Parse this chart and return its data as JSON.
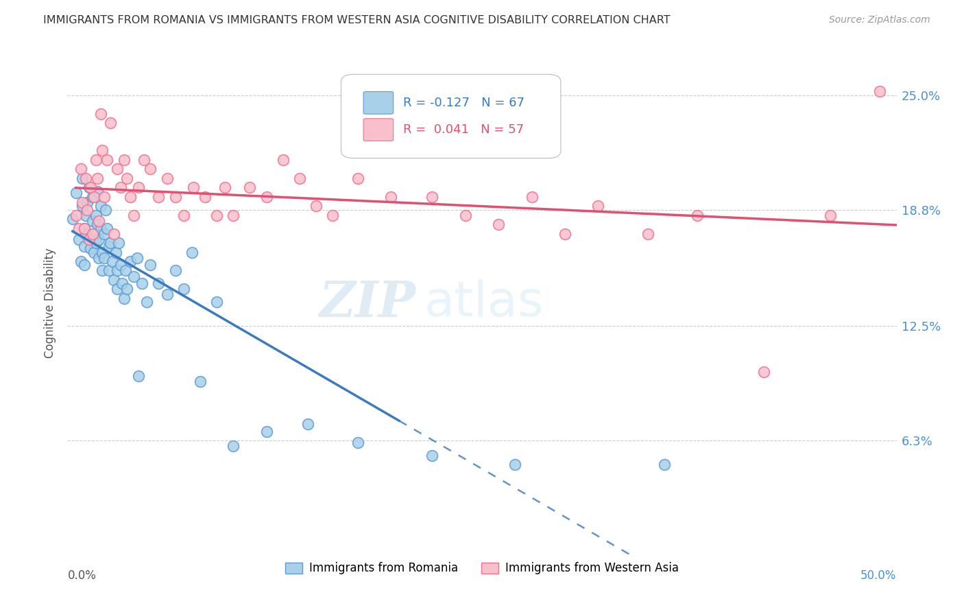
{
  "title": "IMMIGRANTS FROM ROMANIA VS IMMIGRANTS FROM WESTERN ASIA COGNITIVE DISABILITY CORRELATION CHART",
  "source": "Source: ZipAtlas.com",
  "ylabel": "Cognitive Disability",
  "ytick_labels": [
    "6.3%",
    "12.5%",
    "18.8%",
    "25.0%"
  ],
  "ytick_values": [
    0.063,
    0.125,
    0.188,
    0.25
  ],
  "xlim": [
    0.0,
    0.5
  ],
  "ylim": [
    0.0,
    0.275
  ],
  "romania_R": -0.127,
  "romania_N": 67,
  "western_asia_R": 0.041,
  "western_asia_N": 57,
  "legend_label_romania": "Immigrants from Romania",
  "legend_label_western_asia": "Immigrants from Western Asia",
  "color_romania": "#a8d0e8",
  "color_western_asia": "#f9c0cc",
  "color_romania_edge": "#5b9bd5",
  "color_western_asia_edge": "#f07090",
  "color_romania_line": "#3a7abf",
  "color_western_asia_line": "#e05070",
  "watermark_zip": "ZIP",
  "watermark_atlas": "atlas",
  "romania_scatter_x": [
    0.003,
    0.005,
    0.007,
    0.008,
    0.009,
    0.009,
    0.01,
    0.01,
    0.01,
    0.011,
    0.011,
    0.012,
    0.013,
    0.014,
    0.015,
    0.015,
    0.016,
    0.016,
    0.017,
    0.017,
    0.018,
    0.018,
    0.019,
    0.019,
    0.02,
    0.02,
    0.021,
    0.021,
    0.022,
    0.022,
    0.023,
    0.024,
    0.025,
    0.025,
    0.026,
    0.027,
    0.028,
    0.029,
    0.03,
    0.03,
    0.031,
    0.032,
    0.033,
    0.034,
    0.035,
    0.036,
    0.038,
    0.04,
    0.042,
    0.043,
    0.045,
    0.048,
    0.05,
    0.055,
    0.06,
    0.065,
    0.07,
    0.075,
    0.08,
    0.09,
    0.1,
    0.12,
    0.145,
    0.175,
    0.22,
    0.27,
    0.36
  ],
  "romania_scatter_y": [
    0.183,
    0.197,
    0.172,
    0.16,
    0.19,
    0.205,
    0.178,
    0.168,
    0.158,
    0.185,
    0.175,
    0.192,
    0.2,
    0.167,
    0.195,
    0.182,
    0.175,
    0.165,
    0.185,
    0.17,
    0.198,
    0.18,
    0.172,
    0.162,
    0.19,
    0.178,
    0.165,
    0.155,
    0.175,
    0.162,
    0.188,
    0.178,
    0.168,
    0.155,
    0.17,
    0.16,
    0.15,
    0.165,
    0.155,
    0.145,
    0.17,
    0.158,
    0.148,
    0.14,
    0.155,
    0.145,
    0.16,
    0.152,
    0.162,
    0.098,
    0.148,
    0.138,
    0.158,
    0.148,
    0.142,
    0.155,
    0.145,
    0.165,
    0.095,
    0.138,
    0.06,
    0.068,
    0.072,
    0.062,
    0.055,
    0.05,
    0.05
  ],
  "western_asia_scatter_x": [
    0.005,
    0.007,
    0.008,
    0.009,
    0.01,
    0.011,
    0.012,
    0.013,
    0.014,
    0.015,
    0.016,
    0.017,
    0.018,
    0.019,
    0.02,
    0.021,
    0.022,
    0.024,
    0.026,
    0.028,
    0.03,
    0.032,
    0.034,
    0.036,
    0.038,
    0.04,
    0.043,
    0.046,
    0.05,
    0.055,
    0.06,
    0.065,
    0.07,
    0.076,
    0.083,
    0.09,
    0.095,
    0.1,
    0.11,
    0.12,
    0.13,
    0.14,
    0.15,
    0.16,
    0.175,
    0.195,
    0.22,
    0.24,
    0.26,
    0.28,
    0.3,
    0.32,
    0.35,
    0.38,
    0.42,
    0.46,
    0.49
  ],
  "western_asia_scatter_y": [
    0.185,
    0.178,
    0.21,
    0.192,
    0.178,
    0.205,
    0.188,
    0.172,
    0.2,
    0.175,
    0.195,
    0.215,
    0.205,
    0.182,
    0.24,
    0.22,
    0.195,
    0.215,
    0.235,
    0.175,
    0.21,
    0.2,
    0.215,
    0.205,
    0.195,
    0.185,
    0.2,
    0.215,
    0.21,
    0.195,
    0.205,
    0.195,
    0.185,
    0.2,
    0.195,
    0.185,
    0.2,
    0.185,
    0.2,
    0.195,
    0.215,
    0.205,
    0.19,
    0.185,
    0.205,
    0.195,
    0.195,
    0.185,
    0.18,
    0.195,
    0.175,
    0.19,
    0.175,
    0.185,
    0.1,
    0.185,
    0.252
  ]
}
